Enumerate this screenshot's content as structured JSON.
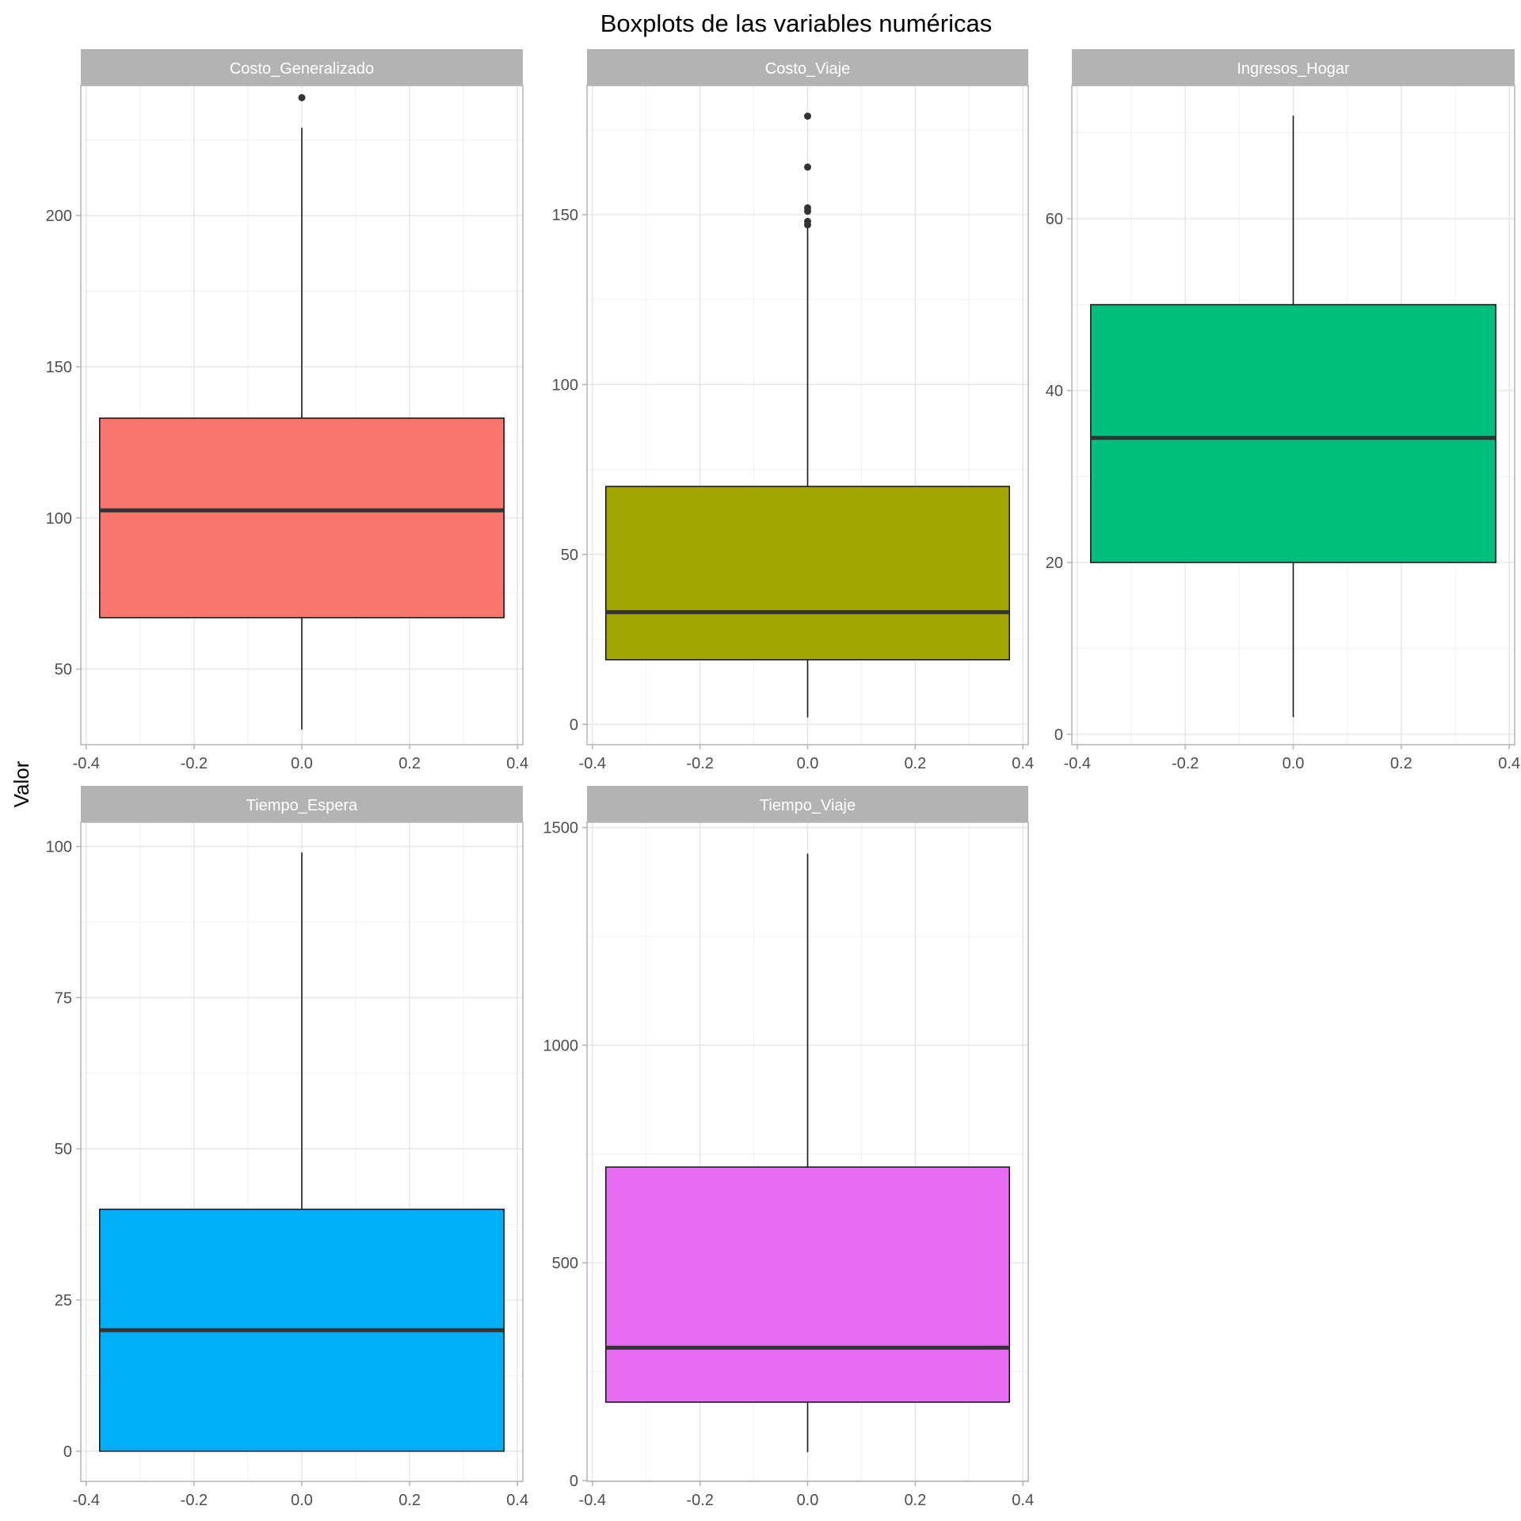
{
  "chart_data": {
    "type": "boxplot",
    "title": "Boxplots de las variables numéricas",
    "ylabel": "Valor",
    "xlabel": "",
    "grid": true,
    "x_ticks": [
      -0.4,
      -0.2,
      0.0,
      0.2,
      0.4
    ],
    "x_tick_labels": [
      "-0.4",
      "-0.2",
      "0.0",
      "0.2",
      "0.4"
    ],
    "xlim": [
      -0.41,
      0.41
    ],
    "box_halfwidth": 0.375,
    "panels": [
      {
        "name": "Costo_Generalizado",
        "color": "#F8766D",
        "ylim": [
          25,
          243
        ],
        "y_ticks": [
          50,
          100,
          150,
          200
        ],
        "y_tick_labels": [
          "50",
          "100",
          "150",
          "200"
        ],
        "stats": {
          "lower_whisker": 30,
          "q1": 67,
          "median": 102.5,
          "q3": 133,
          "upper_whisker": 229
        },
        "outliers": [
          239
        ]
      },
      {
        "name": "Costo_Viaje",
        "color": "#A3A500",
        "ylim": [
          -6,
          188
        ],
        "y_ticks": [
          0,
          50,
          100,
          150
        ],
        "y_tick_labels": [
          "0",
          "50",
          "100",
          "150"
        ],
        "stats": {
          "lower_whisker": 2,
          "q1": 19,
          "median": 33,
          "q3": 70,
          "upper_whisker": 146
        },
        "outliers": [
          147,
          148,
          151,
          152,
          164,
          179
        ]
      },
      {
        "name": "Ingresos_Hogar",
        "color": "#00BF7D",
        "ylim": [
          -1.2,
          75.5
        ],
        "y_ticks": [
          0,
          20,
          40,
          60
        ],
        "y_tick_labels": [
          "0",
          "20",
          "40",
          "60"
        ],
        "stats": {
          "lower_whisker": 2,
          "q1": 20,
          "median": 34.5,
          "q3": 50,
          "upper_whisker": 72
        },
        "outliers": []
      },
      {
        "name": "Tiempo_Espera",
        "color": "#00B0F6",
        "ylim": [
          -5,
          104
        ],
        "y_ticks": [
          0,
          25,
          50,
          75,
          100
        ],
        "y_tick_labels": [
          "0",
          "25",
          "50",
          "75",
          "100"
        ],
        "stats": {
          "lower_whisker": 0,
          "q1": 0,
          "median": 20,
          "q3": 40,
          "upper_whisker": 99
        },
        "outliers": []
      },
      {
        "name": "Tiempo_Viaje",
        "color": "#E76BF3",
        "ylim": [
          -2,
          1512
        ],
        "y_ticks": [
          0,
          500,
          1000,
          1500
        ],
        "y_tick_labels": [
          "0",
          "500",
          "1000",
          "1500"
        ],
        "stats": {
          "lower_whisker": 65,
          "q1": 180,
          "median": 305,
          "q3": 720,
          "upper_whisker": 1440
        },
        "outliers": []
      }
    ]
  }
}
